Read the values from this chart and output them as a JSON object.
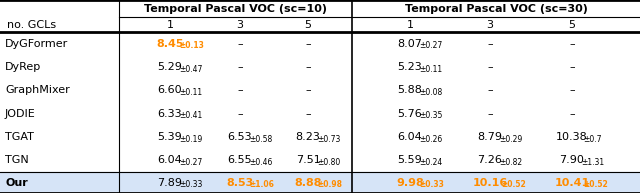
{
  "title_sc10": "Temporal Pascal VOC (sc=10)",
  "title_sc30": "Temporal Pascal VOC (sc=30)",
  "rows": [
    {
      "name": "DyGFormer",
      "sc10": [
        [
          "8.45",
          "0.13",
          "orange"
        ],
        [
          "–",
          "",
          "black"
        ],
        [
          "–",
          "",
          "black"
        ]
      ],
      "sc30": [
        [
          "8.07",
          "0.27",
          "black"
        ],
        [
          "–",
          "",
          "black"
        ],
        [
          "–",
          "",
          "black"
        ]
      ]
    },
    {
      "name": "DyRep",
      "sc10": [
        [
          "5.29",
          "0.47",
          "black"
        ],
        [
          "–",
          "",
          "black"
        ],
        [
          "–",
          "",
          "black"
        ]
      ],
      "sc30": [
        [
          "5.23",
          "0.11",
          "black"
        ],
        [
          "–",
          "",
          "black"
        ],
        [
          "–",
          "",
          "black"
        ]
      ]
    },
    {
      "name": "GraphMixer",
      "sc10": [
        [
          "6.60",
          "0.11",
          "black"
        ],
        [
          "–",
          "",
          "black"
        ],
        [
          "–",
          "",
          "black"
        ]
      ],
      "sc30": [
        [
          "5.88",
          "0.08",
          "black"
        ],
        [
          "–",
          "",
          "black"
        ],
        [
          "–",
          "",
          "black"
        ]
      ]
    },
    {
      "name": "JODIE",
      "sc10": [
        [
          "6.33",
          "0.41",
          "black"
        ],
        [
          "–",
          "",
          "black"
        ],
        [
          "–",
          "",
          "black"
        ]
      ],
      "sc30": [
        [
          "5.76",
          "0.35",
          "black"
        ],
        [
          "–",
          "",
          "black"
        ],
        [
          "–",
          "",
          "black"
        ]
      ]
    },
    {
      "name": "TGAT",
      "sc10": [
        [
          "5.39",
          "0.19",
          "black"
        ],
        [
          "6.53",
          "0.58",
          "black"
        ],
        [
          "8.23",
          "0.73",
          "black"
        ]
      ],
      "sc30": [
        [
          "6.04",
          "0.26",
          "black"
        ],
        [
          "8.79",
          "0.29",
          "black"
        ],
        [
          "10.38",
          "0.7",
          "black"
        ]
      ]
    },
    {
      "name": "TGN",
      "sc10": [
        [
          "6.04",
          "0.27",
          "black"
        ],
        [
          "6.55",
          "0.46",
          "black"
        ],
        [
          "7.51",
          "0.80",
          "black"
        ]
      ],
      "sc30": [
        [
          "5.59",
          "0.24",
          "black"
        ],
        [
          "7.26",
          "0.82",
          "black"
        ],
        [
          "7.90",
          "1.31",
          "black"
        ]
      ]
    },
    {
      "name": "Our",
      "sc10": [
        [
          "7.89",
          "0.33",
          "black"
        ],
        [
          "8.53",
          "1.06",
          "orange"
        ],
        [
          "8.88",
          "0.98",
          "orange"
        ]
      ],
      "sc30": [
        [
          "9.98",
          "0.33",
          "orange"
        ],
        [
          "10.16",
          "0.52",
          "orange"
        ],
        [
          "10.41",
          "0.52",
          "orange"
        ]
      ]
    }
  ],
  "orange_color": "#FF8C00",
  "black_color": "#000000",
  "our_bg": "#d6e4f7"
}
